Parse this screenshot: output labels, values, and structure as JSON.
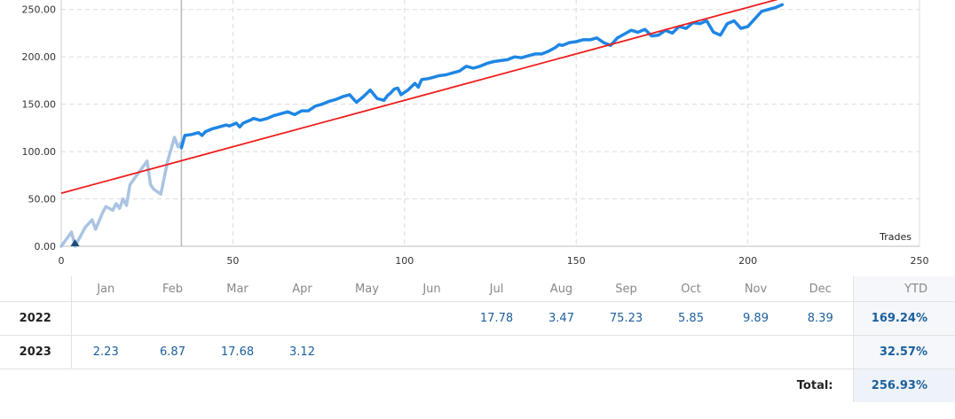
{
  "chart_data": {
    "type": "line",
    "x_label": "Trades",
    "xlim": [
      0,
      250
    ],
    "ylim": [
      0,
      260
    ],
    "x_ticks": [
      "0",
      "50",
      "100",
      "150",
      "200",
      "250"
    ],
    "y_ticks": [
      "0.00",
      "50.00",
      "100.00",
      "150.00",
      "200.00",
      "250.00"
    ],
    "grid": true,
    "divider_x": 35,
    "marker_x": 4,
    "series": [
      {
        "color": "#aac4e2",
        "x": [
          0,
          3,
          4,
          7,
          9,
          10,
          12,
          13,
          15,
          16,
          17,
          18,
          19,
          20,
          21,
          23,
          25,
          26,
          27,
          29,
          31,
          33,
          34,
          35
        ],
        "y": [
          0,
          15,
          0,
          20,
          28,
          18,
          35,
          42,
          38,
          45,
          40,
          50,
          43,
          65,
          70,
          80,
          90,
          65,
          60,
          55,
          90,
          115,
          105,
          110
        ]
      },
      {
        "color": "#1e86e4",
        "x": [
          35,
          36,
          38,
          40,
          41,
          42,
          44,
          46,
          48,
          49,
          51,
          52,
          53,
          55,
          56,
          58,
          60,
          62,
          63,
          64,
          66,
          68,
          70,
          72,
          74,
          76,
          78,
          80,
          82,
          84,
          86,
          88,
          90,
          92,
          94,
          95,
          96,
          97,
          98,
          99,
          101,
          103,
          104,
          105,
          107,
          108,
          110,
          112,
          114,
          116,
          118,
          120,
          122,
          124,
          126,
          128,
          130,
          132,
          134,
          136,
          138,
          140,
          142,
          144,
          145,
          146,
          148,
          150,
          152,
          154,
          156,
          158,
          160,
          162,
          163,
          164,
          166,
          168,
          170,
          172,
          174,
          176,
          178,
          180,
          182,
          184,
          186,
          188,
          190,
          192,
          194,
          196,
          198,
          200,
          202,
          204,
          206,
          208,
          210
        ],
        "y": [
          104,
          117,
          118,
          120,
          117,
          121,
          124,
          126,
          128,
          127,
          130,
          126,
          130,
          133,
          135,
          133,
          135,
          138,
          139,
          140,
          142,
          139,
          143,
          143,
          148,
          150,
          153,
          155,
          158,
          160,
          152,
          158,
          165,
          156,
          154,
          159,
          162,
          166,
          167,
          160,
          165,
          172,
          168,
          176,
          177,
          178,
          180,
          181,
          183,
          185,
          190,
          188,
          190,
          193,
          195,
          196,
          197,
          200,
          199,
          201,
          203,
          203,
          206,
          210,
          213,
          212,
          215,
          216,
          218,
          218,
          220,
          215,
          212,
          220,
          222,
          224,
          228,
          226,
          229,
          222,
          223,
          228,
          225,
          232,
          230,
          236,
          235,
          238,
          226,
          223,
          235,
          238,
          230,
          232,
          240,
          248,
          250,
          252,
          255
        ]
      }
    ],
    "trend": {
      "color": "#ee1c1c",
      "x0": 0,
      "y0": 56,
      "x1": 210,
      "y1": 262
    }
  },
  "table": {
    "months": [
      "Jan",
      "Feb",
      "Mar",
      "Apr",
      "May",
      "Jun",
      "Jul",
      "Aug",
      "Sep",
      "Oct",
      "Nov",
      "Dec"
    ],
    "ytd_label": "YTD",
    "rows": [
      {
        "year": "2022",
        "values": [
          "",
          "",
          "",
          "",
          "",
          "",
          "17.78",
          "3.47",
          "75.23",
          "5.85",
          "9.89",
          "8.39"
        ],
        "ytd": "169.24%"
      },
      {
        "year": "2023",
        "values": [
          "2.23",
          "6.87",
          "17.68",
          "3.12",
          "",
          "",
          "",
          "",
          "",
          "",
          "",
          ""
        ],
        "ytd": "32.57%"
      }
    ],
    "total_label": "Total:",
    "total_value": "256.93%"
  }
}
